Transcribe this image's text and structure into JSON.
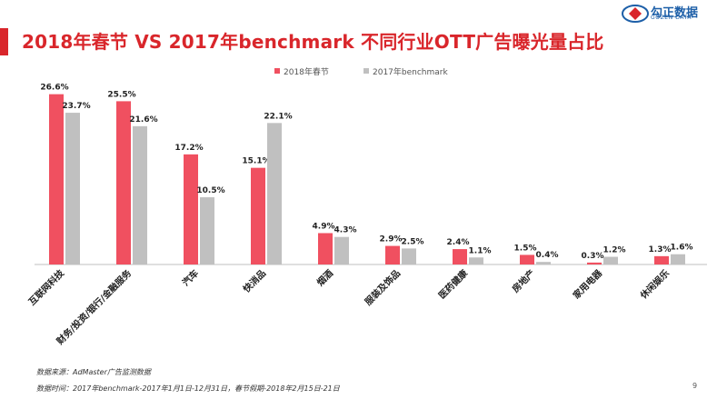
{
  "header": {
    "title": "2018年春节  VS  2017年benchmark  不同行业OTT广告曝光量占比",
    "logo_name": "勾正数据",
    "logo_sub": "GOZEN DATA"
  },
  "colors": {
    "accent": "#d9262b",
    "series_2018": "#f05060",
    "series_2017": "#c0c0c0",
    "logo": "#1d5fa8"
  },
  "chart_data": {
    "type": "bar",
    "title": "",
    "xlabel": "",
    "ylabel": "",
    "ylim": [
      0,
      30
    ],
    "legend_position": "top-center",
    "categories": [
      "互联网科技",
      "财务/投资/银行/金融服务",
      "汽车",
      "快消品",
      "烟酒",
      "服装及饰品",
      "医药健康",
      "房地产",
      "家用电器",
      "休闲娱乐"
    ],
    "series": [
      {
        "name": "2018年春节",
        "values": [
          26.6,
          25.5,
          17.2,
          15.1,
          4.9,
          2.9,
          2.4,
          1.5,
          0.3,
          1.3
        ],
        "labels": [
          "26.6%",
          "25.5%",
          "17.2%",
          "15.1%",
          "4.9%",
          "2.9%",
          "2.4%",
          "1.5%",
          "0.3%",
          "1.3%"
        ]
      },
      {
        "name": "2017年benchmark",
        "values": [
          23.7,
          21.6,
          10.5,
          22.1,
          4.3,
          2.5,
          1.1,
          0.4,
          1.2,
          1.6
        ],
        "labels": [
          "23.7%",
          "21.6%",
          "10.5%",
          "22.1%",
          "4.3%",
          "2.5%",
          "1.1%",
          "0.4%",
          "1.2%",
          "1.6%"
        ]
      }
    ]
  },
  "footer": {
    "source": "数据来源：AdMaster广告监测数据",
    "period": "数据时间：2017年benchmark-2017年1月1日-12月31日，春节假期-2018年2月15日-21日",
    "page_number": "9"
  }
}
